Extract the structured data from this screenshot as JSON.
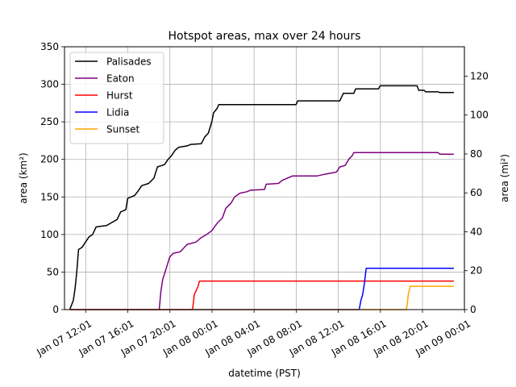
{
  "chart_data": {
    "type": "line",
    "title": "Hotspot areas, max over 24 hours",
    "xlabel": "datetime (PST)",
    "ylabel_left": "area (km²)",
    "ylabel_right": "area (mi²)",
    "ylim": [
      0,
      350
    ],
    "ylim_right": [
      0,
      135.1
    ],
    "yticks_left": [
      0,
      50,
      100,
      150,
      200,
      250,
      300,
      350
    ],
    "yticks_right": [
      0,
      20,
      40,
      60,
      80,
      100,
      120
    ],
    "xlim": [
      "2025-01-07 10:00",
      "2025-01-09 00:00"
    ],
    "xticks": [
      {
        "t": "2025-01-07 12:01",
        "label": "Jan 07 12:01"
      },
      {
        "t": "2025-01-07 16:01",
        "label": "Jan 07 16:01"
      },
      {
        "t": "2025-01-07 20:01",
        "label": "Jan 07 20:01"
      },
      {
        "t": "2025-01-08 00:01",
        "label": "Jan 08 00:01"
      },
      {
        "t": "2025-01-08 04:01",
        "label": "Jan 08 04:01"
      },
      {
        "t": "2025-01-08 08:01",
        "label": "Jan 08 08:01"
      },
      {
        "t": "2025-01-08 12:01",
        "label": "Jan 08 12:01"
      },
      {
        "t": "2025-01-08 16:01",
        "label": "Jan 08 16:01"
      },
      {
        "t": "2025-01-08 20:01",
        "label": "Jan 08 20:01"
      },
      {
        "t": "2025-01-09 00:01",
        "label": "Jan 09 00:01"
      }
    ],
    "grid": true,
    "legend_position": "top-left",
    "series": [
      {
        "name": "Palisades",
        "color": "#000000",
        "points": [
          [
            "2025-01-07 10:30",
            0
          ],
          [
            "2025-01-07 10:50",
            12
          ],
          [
            "2025-01-07 11:00",
            28
          ],
          [
            "2025-01-07 11:10",
            50
          ],
          [
            "2025-01-07 11:20",
            80
          ],
          [
            "2025-01-07 11:40",
            83
          ],
          [
            "2025-01-07 12:00",
            90
          ],
          [
            "2025-01-07 12:20",
            97
          ],
          [
            "2025-01-07 12:40",
            100
          ],
          [
            "2025-01-07 13:00",
            110
          ],
          [
            "2025-01-07 14:00",
            112
          ],
          [
            "2025-01-07 14:30",
            116
          ],
          [
            "2025-01-07 15:00",
            120
          ],
          [
            "2025-01-07 15:20",
            130
          ],
          [
            "2025-01-07 15:50",
            133
          ],
          [
            "2025-01-07 16:00",
            148
          ],
          [
            "2025-01-07 16:40",
            152
          ],
          [
            "2025-01-07 17:00",
            158
          ],
          [
            "2025-01-07 17:20",
            165
          ],
          [
            "2025-01-07 18:00",
            168
          ],
          [
            "2025-01-07 18:30",
            175
          ],
          [
            "2025-01-07 18:50",
            190
          ],
          [
            "2025-01-07 19:30",
            193
          ],
          [
            "2025-01-07 19:50",
            200
          ],
          [
            "2025-01-07 20:10",
            205
          ],
          [
            "2025-01-07 20:30",
            212
          ],
          [
            "2025-01-07 20:50",
            216
          ],
          [
            "2025-01-07 21:40",
            218
          ],
          [
            "2025-01-07 22:00",
            220
          ],
          [
            "2025-01-07 23:00",
            221
          ],
          [
            "2025-01-07 23:20",
            230
          ],
          [
            "2025-01-07 23:40",
            235
          ],
          [
            "2025-01-08 00:00",
            250
          ],
          [
            "2025-01-08 00:10",
            262
          ],
          [
            "2025-01-08 00:30",
            268
          ],
          [
            "2025-01-08 00:40",
            273
          ],
          [
            "2025-01-08 08:00",
            273
          ],
          [
            "2025-01-08 08:10",
            278
          ],
          [
            "2025-01-08 12:10",
            278
          ],
          [
            "2025-01-08 12:30",
            288
          ],
          [
            "2025-01-08 13:30",
            288
          ],
          [
            "2025-01-08 13:40",
            294
          ],
          [
            "2025-01-08 15:50",
            294
          ],
          [
            "2025-01-08 16:00",
            298
          ],
          [
            "2025-01-08 19:30",
            298
          ],
          [
            "2025-01-08 19:40",
            292
          ],
          [
            "2025-01-08 20:10",
            292
          ],
          [
            "2025-01-08 20:20",
            290
          ],
          [
            "2025-01-08 21:30",
            290
          ],
          [
            "2025-01-08 21:40",
            289
          ],
          [
            "2025-01-08 23:00",
            289
          ]
        ]
      },
      {
        "name": "Eaton",
        "color": "#800080",
        "points": [
          [
            "2025-01-07 10:30",
            0
          ],
          [
            "2025-01-07 19:00",
            0
          ],
          [
            "2025-01-07 19:10",
            25
          ],
          [
            "2025-01-07 19:20",
            40
          ],
          [
            "2025-01-07 19:40",
            55
          ],
          [
            "2025-01-07 20:00",
            70
          ],
          [
            "2025-01-07 20:20",
            75
          ],
          [
            "2025-01-07 21:00",
            77
          ],
          [
            "2025-01-07 21:20",
            82
          ],
          [
            "2025-01-07 21:40",
            87
          ],
          [
            "2025-01-07 22:00",
            88
          ],
          [
            "2025-01-07 22:30",
            90
          ],
          [
            "2025-01-07 23:00",
            96
          ],
          [
            "2025-01-07 23:30",
            100
          ],
          [
            "2025-01-08 00:00",
            105
          ],
          [
            "2025-01-08 00:30",
            115
          ],
          [
            "2025-01-08 01:00",
            122
          ],
          [
            "2025-01-08 01:20",
            135
          ],
          [
            "2025-01-08 01:50",
            142
          ],
          [
            "2025-01-08 02:10",
            150
          ],
          [
            "2025-01-08 02:40",
            155
          ],
          [
            "2025-01-08 03:20",
            157
          ],
          [
            "2025-01-08 03:40",
            159
          ],
          [
            "2025-01-08 05:00",
            160
          ],
          [
            "2025-01-08 05:10",
            167
          ],
          [
            "2025-01-08 06:20",
            168
          ],
          [
            "2025-01-08 06:40",
            172
          ],
          [
            "2025-01-08 07:20",
            176
          ],
          [
            "2025-01-08 07:40",
            178
          ],
          [
            "2025-01-08 10:00",
            178
          ],
          [
            "2025-01-08 10:40",
            180
          ],
          [
            "2025-01-08 11:50",
            183
          ],
          [
            "2025-01-08 12:10",
            190
          ],
          [
            "2025-01-08 12:40",
            192
          ],
          [
            "2025-01-08 13:00",
            200
          ],
          [
            "2025-01-08 13:20",
            205
          ],
          [
            "2025-01-08 13:30",
            209
          ],
          [
            "2025-01-08 21:30",
            209
          ],
          [
            "2025-01-08 21:40",
            207
          ],
          [
            "2025-01-08 23:00",
            207
          ]
        ]
      },
      {
        "name": "Hurst",
        "color": "#ff0000",
        "points": [
          [
            "2025-01-07 10:30",
            0
          ],
          [
            "2025-01-07 22:10",
            0
          ],
          [
            "2025-01-07 22:20",
            20
          ],
          [
            "2025-01-07 22:40",
            30
          ],
          [
            "2025-01-07 22:50",
            38
          ],
          [
            "2025-01-08 23:00",
            38
          ]
        ]
      },
      {
        "name": "Lidia",
        "color": "#0000ff",
        "points": [
          [
            "2025-01-07 10:30",
            0
          ],
          [
            "2025-01-08 14:00",
            0
          ],
          [
            "2025-01-08 14:10",
            12
          ],
          [
            "2025-01-08 14:20",
            20
          ],
          [
            "2025-01-08 14:30",
            35
          ],
          [
            "2025-01-08 14:40",
            55
          ],
          [
            "2025-01-08 23:00",
            55
          ]
        ]
      },
      {
        "name": "Sunset",
        "color": "#ffa500",
        "points": [
          [
            "2025-01-07 10:30",
            0
          ],
          [
            "2025-01-08 18:30",
            0
          ],
          [
            "2025-01-08 18:40",
            20
          ],
          [
            "2025-01-08 18:50",
            31
          ],
          [
            "2025-01-08 23:00",
            31
          ]
        ]
      }
    ]
  }
}
